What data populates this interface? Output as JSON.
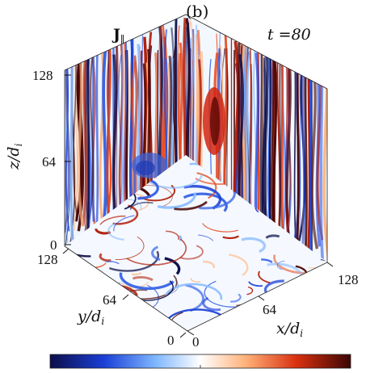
{
  "panel_label": "(b)",
  "quantity": "J",
  "quantity_subscript": "∥",
  "time": "t =80",
  "axes": {
    "z": {
      "label_main": "z/d",
      "label_sub": "i",
      "ticks": [
        "128",
        "64",
        "0"
      ]
    },
    "y": {
      "label_main": "y/d",
      "label_sub": "i",
      "ticks": [
        "128",
        "64",
        "0"
      ]
    },
    "x": {
      "label_main": "x/d",
      "label_sub": "i",
      "ticks": [
        "0",
        "64",
        "128"
      ]
    }
  },
  "colormap": {
    "name": "blue-white-red diverging",
    "stops": [
      "#0d0f4a",
      "#1a3fd6",
      "#7fb6ff",
      "#ffffff",
      "#ffb27a",
      "#d9300f",
      "#3b0604"
    ]
  }
}
